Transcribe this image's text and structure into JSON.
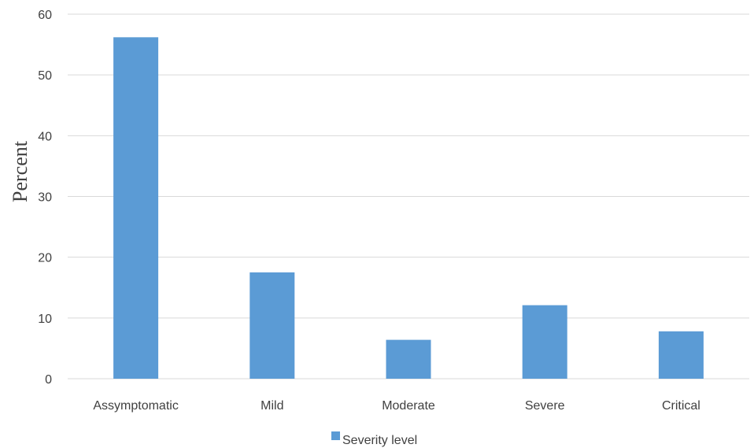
{
  "chart_data": {
    "type": "bar",
    "categories": [
      "Assymptomatic",
      "Mild",
      "Moderate",
      "Severe",
      "Critical"
    ],
    "series": [
      {
        "name": "Severity level",
        "values": [
          56.2,
          17.5,
          6.4,
          12.1,
          7.8
        ],
        "color": "#5b9bd5"
      }
    ],
    "ylabel": "Percent",
    "xlabel": "",
    "ylim": [
      0,
      60
    ],
    "yticks": [
      0,
      10,
      20,
      30,
      40,
      50,
      60
    ],
    "grid": true,
    "legend_position": "bottom",
    "gridline_color": "#d9d9d9",
    "text_color": "#404040"
  }
}
